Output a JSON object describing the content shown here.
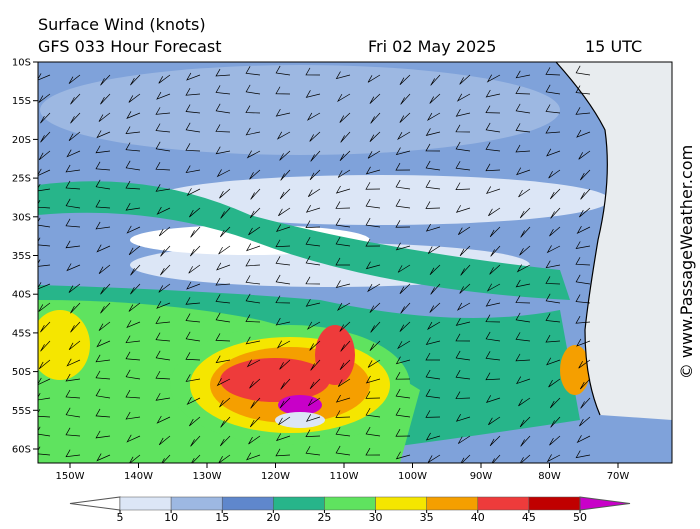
{
  "header": {
    "title": "Surface Wind (knots)",
    "subtitle": "GFS 033 Hour Forecast",
    "date": "Fri 02 May 2025",
    "time": "15 UTC"
  },
  "map": {
    "lat_labels": [
      "10S",
      "15S",
      "20S",
      "25S",
      "30S",
      "35S",
      "40S",
      "45S",
      "50S",
      "55S",
      "60S"
    ],
    "lon_labels": [
      "150W",
      "140W",
      "130W",
      "120W",
      "110W",
      "100W",
      "90W",
      "80W",
      "70W"
    ]
  },
  "colorbar": {
    "ticks": [
      5,
      10,
      15,
      20,
      25,
      30,
      35,
      40,
      45,
      50
    ],
    "colors": [
      "#ffffff",
      "#dce6f6",
      "#9db8e2",
      "#5f87cc",
      "#27b58a",
      "#5fe35f",
      "#f5e600",
      "#f59f00",
      "#ee3b3b",
      "#c00000",
      "#c800c8"
    ]
  },
  "credit": "© www.PassageWeather.com"
}
